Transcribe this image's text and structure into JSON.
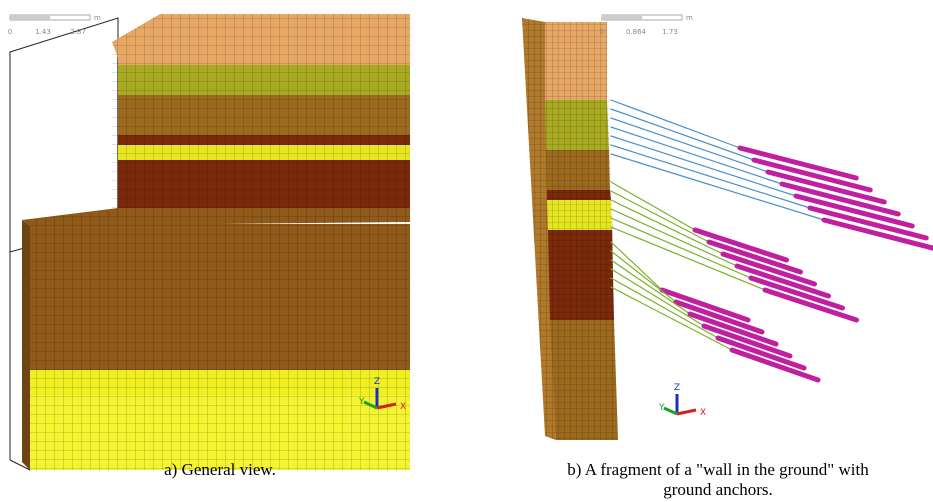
{
  "panels": [
    {
      "scale": {
        "ticks": [
          "0",
          "1.43",
          "2.87"
        ],
        "unit": "m"
      },
      "triad": {
        "z": "Z",
        "y": "Y",
        "x": "X"
      },
      "caption": [
        "a) General view."
      ]
    },
    {
      "scale": {
        "ticks": [
          "0",
          "0.864",
          "1.73"
        ],
        "unit": "m"
      },
      "triad": {
        "z": "Z",
        "y": "Y",
        "x": "X"
      },
      "caption": [
        "b) A fragment of a \"wall in the ground\" with",
        "ground anchors."
      ]
    }
  ]
}
